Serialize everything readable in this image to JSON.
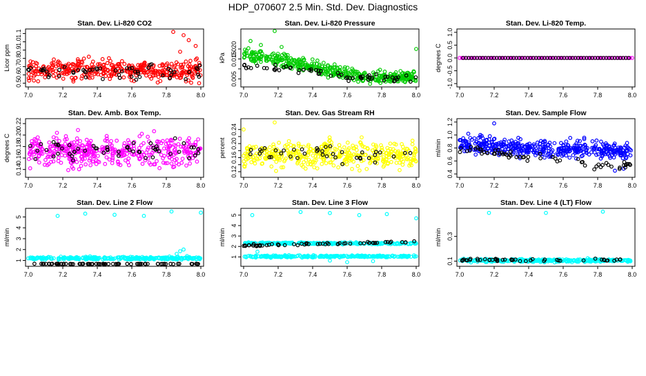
{
  "figure": {
    "title": "HDP_070607  2.5 Min. Std. Dev. Diagnostics"
  },
  "chart_data": [
    {
      "id": "co2",
      "type": "scatter",
      "title": "Stan. Dev. Li-820 CO2",
      "ylabel": "Licor ppm",
      "xlim": [
        7.0,
        8.0
      ],
      "ylim": [
        0.48,
        1.13
      ],
      "xticks": [
        "7.0",
        "7.2",
        "7.4",
        "7.6",
        "7.8",
        "8.0"
      ],
      "yticks": [
        0.5,
        0.6,
        0.7,
        0.8,
        0.9,
        1.0,
        1.1
      ],
      "ytick_labels": [
        "0.5",
        "0.6",
        "0.7",
        "0.8",
        "0.9",
        "1.0",
        "1.1"
      ],
      "series": [
        {
          "name": "all",
          "color": "#ff0000",
          "n": 380,
          "gen": [
            0.66,
            0.12,
            0.5,
            1.0
          ],
          "extra": [
            [
              7.84,
              1.12
            ],
            [
              7.9,
              1.08
            ],
            [
              7.93,
              1.02
            ],
            [
              7.97,
              0.95
            ],
            [
              7.88,
              0.88
            ],
            [
              7.99,
              0.5
            ]
          ]
        },
        {
          "name": "subset",
          "color": "#000000",
          "n": 55,
          "gen": [
            0.64,
            0.09,
            0.5,
            0.9
          ],
          "extra": []
        }
      ]
    },
    {
      "id": "pressure",
      "type": "scatter",
      "title": "Stan. Dev. Li-820 Pressure",
      "ylabel": "kPa",
      "xlim": [
        7.0,
        8.0
      ],
      "ylim": [
        0.002,
        0.029
      ],
      "xticks": [
        "7.0",
        "7.2",
        "7.4",
        "7.6",
        "7.8",
        "8.0"
      ],
      "yticks": [
        0.005,
        0.01,
        0.015,
        0.02
      ],
      "ytick_labels": [
        "0.005",
        "",
        "0.015",
        "0.020"
      ],
      "series": [
        {
          "name": "all",
          "color": "#00cc00",
          "n": 420,
          "gen_trend": [
            [
              7.0,
              0.017
            ],
            [
              7.3,
              0.013
            ],
            [
              7.5,
              0.009
            ],
            [
              7.7,
              0.006
            ],
            [
              8.0,
              0.006
            ]
          ],
          "spread": 0.003,
          "extra": [
            [
              7.18,
              0.029
            ],
            [
              7.04,
              0.024
            ],
            [
              7.1,
              0.022
            ],
            [
              8.0,
              0.02
            ],
            [
              7.22,
              0.021
            ]
          ]
        },
        {
          "name": "subset",
          "color": "#000000",
          "n": 60,
          "gen_trend": [
            [
              7.0,
              0.012
            ],
            [
              7.4,
              0.009
            ],
            [
              7.6,
              0.006
            ],
            [
              8.0,
              0.005
            ]
          ],
          "spread": 0.002,
          "extra": []
        }
      ]
    },
    {
      "id": "temp",
      "type": "scatter",
      "title": "Stan. Dev. Li-820 Temp.",
      "ylabel": "degrees C",
      "xlim": [
        7.0,
        8.0
      ],
      "ylim": [
        -1.05,
        1.05
      ],
      "xticks": [
        "7.0",
        "7.2",
        "7.4",
        "7.6",
        "7.8",
        "8.0"
      ],
      "yticks": [
        -1.0,
        -0.5,
        0.0,
        0.5,
        1.0
      ],
      "ytick_labels": [
        "-1.0",
        "-0.5",
        "0.0",
        "0.5",
        "1.0"
      ],
      "series": [
        {
          "name": "all",
          "color": "#ff00ff",
          "n": 80,
          "gen": [
            0.0,
            0.0,
            0.0,
            0.0
          ],
          "extra": []
        },
        {
          "name": "subset",
          "color": "#000000",
          "n": 60,
          "gen": [
            0.0,
            0.0,
            0.0,
            0.0
          ],
          "extra": []
        }
      ]
    },
    {
      "id": "ambbox",
      "type": "scatter",
      "title": "Stan. Dev. Amb. Box Temp.",
      "ylabel": "degrees C",
      "xlim": [
        7.0,
        8.0
      ],
      "ylim": [
        0.13,
        0.225
      ],
      "xticks": [
        "7.0",
        "7.2",
        "7.4",
        "7.6",
        "7.8",
        "8.0"
      ],
      "yticks": [
        0.14,
        0.16,
        0.18,
        0.2,
        0.22
      ],
      "ytick_labels": [
        "0.14",
        "0.16",
        "0.18",
        "0.20",
        "0.22"
      ],
      "series": [
        {
          "name": "all",
          "color": "#ff00ff",
          "n": 420,
          "gen": [
            0.172,
            0.025,
            0.135,
            0.222
          ],
          "extra": []
        },
        {
          "name": "subset",
          "color": "#000000",
          "n": 55,
          "gen": [
            0.172,
            0.018,
            0.145,
            0.22
          ],
          "extra": []
        }
      ]
    },
    {
      "id": "rh",
      "type": "scatter",
      "title": "Stan. Dev. Gas Stream RH",
      "ylabel": "percent",
      "xlim": [
        7.0,
        8.0
      ],
      "ylim": [
        0.11,
        0.265
      ],
      "xticks": [
        "7.0",
        "7.2",
        "7.4",
        "7.6",
        "7.8",
        "8.0"
      ],
      "yticks": [
        0.12,
        0.14,
        0.16,
        0.18,
        0.2,
        0.22,
        0.24
      ],
      "ytick_labels": [
        "0.12",
        "",
        "0.16",
        "",
        "0.20",
        "",
        "0.24"
      ],
      "series": [
        {
          "name": "all",
          "color": "#ffff00",
          "n": 420,
          "gen": [
            0.168,
            0.035,
            0.12,
            0.22
          ],
          "extra": [
            [
              7.0,
              0.24
            ],
            [
              7.18,
              0.26
            ],
            [
              7.5,
              0.21
            ],
            [
              7.85,
              0.2
            ]
          ]
        },
        {
          "name": "subset",
          "color": "#000000",
          "n": 40,
          "gen": [
            0.17,
            0.025,
            0.14,
            0.2
          ],
          "extra": []
        }
      ]
    },
    {
      "id": "sampleflow",
      "type": "scatter",
      "title": "Stan. Dev. Sample Flow",
      "ylabel": "ml/min",
      "xlim": [
        7.0,
        8.0
      ],
      "ylim": [
        0.38,
        1.22
      ],
      "xticks": [
        "7.0",
        "7.2",
        "7.4",
        "7.6",
        "7.8",
        "8.0"
      ],
      "yticks": [
        0.4,
        0.6,
        0.8,
        1.0,
        1.2
      ],
      "ytick_labels": [
        "0.4",
        "0.6",
        "0.8",
        "1.0",
        "1.2"
      ],
      "series": [
        {
          "name": "all",
          "color": "#0000ff",
          "n": 440,
          "gen_trend": [
            [
              7.0,
              0.86
            ],
            [
              7.3,
              0.82
            ],
            [
              7.6,
              0.78
            ],
            [
              7.9,
              0.76
            ],
            [
              8.0,
              0.75
            ]
          ],
          "spread": 0.13,
          "extra": [
            [
              7.05,
              1.02
            ],
            [
              7.2,
              1.18
            ],
            [
              7.12,
              1.0
            ],
            [
              7.9,
              0.45
            ],
            [
              7.95,
              0.48
            ]
          ]
        },
        {
          "name": "subset",
          "color": "#000000",
          "n": 60,
          "gen_trend": [
            [
              7.0,
              0.8
            ],
            [
              7.3,
              0.68
            ],
            [
              7.6,
              0.6
            ],
            [
              7.8,
              0.53
            ],
            [
              8.0,
              0.55
            ]
          ],
          "spread": 0.06,
          "extra": []
        }
      ]
    },
    {
      "id": "line2",
      "type": "scatter",
      "title": "Stan. Dev. Line 2 Flow",
      "ylabel": "ml/min",
      "xlim": [
        7.0,
        8.0
      ],
      "ylim": [
        0.65,
        5.6
      ],
      "xticks": [
        "7.0",
        "7.2",
        "7.4",
        "7.6",
        "7.8",
        "8.0"
      ],
      "yticks": [
        1,
        2,
        3,
        4,
        5
      ],
      "ytick_labels": [
        "1",
        "2",
        "3",
        "4",
        "5"
      ],
      "series": [
        {
          "name": "all",
          "color": "#00ffff",
          "n": 300,
          "gen": [
            1.2,
            0.12,
            1.05,
            1.45
          ],
          "extra": [
            [
              7.17,
              5.1
            ],
            [
              7.33,
              5.3
            ],
            [
              7.5,
              5.2
            ],
            [
              7.67,
              5.1
            ],
            [
              7.83,
              5.5
            ],
            [
              8.0,
              5.4
            ],
            [
              7.88,
              1.85
            ],
            [
              7.9,
              2.0
            ],
            [
              7.86,
              1.6
            ],
            [
              7.92,
              1.4
            ]
          ]
        },
        {
          "name": "subset",
          "color": "#000000",
          "n": 75,
          "gen": [
            0.68,
            0.02,
            0.66,
            0.72
          ],
          "extra": []
        }
      ]
    },
    {
      "id": "line3",
      "type": "scatter",
      "title": "Stan. Dev. Line 3 Flow",
      "ylabel": "ml/min",
      "xlim": [
        7.0,
        8.0
      ],
      "ylim": [
        0.3,
        5.45
      ],
      "xticks": [
        "7.0",
        "7.2",
        "7.4",
        "7.6",
        "7.8",
        "8.0"
      ],
      "yticks": [
        1,
        2,
        3,
        4,
        5
      ],
      "ytick_labels": [
        "1",
        "2",
        "3",
        "4",
        "5"
      ],
      "series": [
        {
          "name": "all",
          "color": "#00ffff",
          "n": 520,
          "gen_bands": [
            [
              1.05,
              0.12
            ],
            [
              2.3,
              0.12
            ]
          ],
          "extra": [
            [
              7.05,
              5.0
            ],
            [
              7.33,
              5.3
            ],
            [
              7.5,
              5.2
            ],
            [
              7.67,
              5.0
            ],
            [
              7.83,
              5.1
            ],
            [
              8.0,
              4.7
            ],
            [
              7.6,
              0.5
            ],
            [
              7.75,
              0.6
            ],
            [
              7.08,
              1.5
            ],
            [
              7.5,
              0.65
            ]
          ]
        },
        {
          "name": "subset",
          "color": "#000000",
          "n": 60,
          "gen_trend": [
            [
              7.0,
              2.1
            ],
            [
              8.0,
              2.45
            ]
          ],
          "spread": 0.08,
          "extra": []
        }
      ]
    },
    {
      "id": "line4",
      "type": "scatter",
      "title": "Stan. Dev. Line 4 (LT) Flow",
      "ylabel": "ml/min",
      "xlim": [
        7.0,
        8.0
      ],
      "ylim": [
        0.075,
        0.51
      ],
      "xticks": [
        "7.0",
        "7.2",
        "7.4",
        "7.6",
        "7.8",
        "8.0"
      ],
      "yticks": [
        0.1,
        0.3
      ],
      "ytick_labels": [
        "0.1",
        "0.3"
      ],
      "series": [
        {
          "name": "all",
          "color": "#00ffff",
          "n": 300,
          "gen": [
            0.105,
            0.012,
            0.09,
            0.13
          ],
          "extra": [
            [
              7.17,
              0.49
            ],
            [
              7.5,
              0.49
            ],
            [
              7.83,
              0.5
            ]
          ]
        },
        {
          "name": "subset",
          "color": "#000000",
          "n": 45,
          "gen": [
            0.11,
            0.01,
            0.095,
            0.125
          ],
          "extra": []
        }
      ]
    }
  ]
}
